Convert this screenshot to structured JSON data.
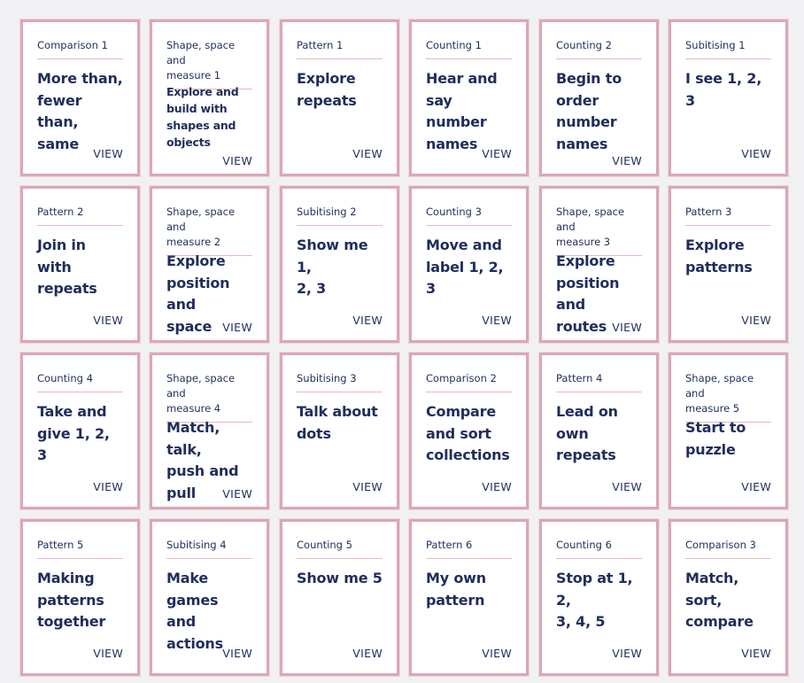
{
  "view_label": "VIEW",
  "cards": [
    {
      "category": "Comparison 1",
      "title": "More than, fewer than, same"
    },
    {
      "category": "Shape, space and measure 1",
      "title": "Explore and build with shapes and objects"
    },
    {
      "category": "Pattern 1",
      "title": "Explore repeats"
    },
    {
      "category": "Counting 1",
      "title": "Hear and say number names"
    },
    {
      "category": "Counting 2",
      "title": "Begin to order number names"
    },
    {
      "category": "Subitising 1",
      "title": "I see 1, 2, 3"
    },
    {
      "category": "Pattern 2",
      "title": "Join in with repeats"
    },
    {
      "category": "Shape, space and measure 2",
      "title": "Explore position and space"
    },
    {
      "category": "Subitising 2",
      "title": "Show me 1, 2, 3"
    },
    {
      "category": "Counting 3",
      "title": "Move and label 1, 2, 3"
    },
    {
      "category": "Shape, space and measure 3",
      "title": "Explore position and routes"
    },
    {
      "category": "Pattern 3",
      "title": "Explore patterns"
    },
    {
      "category": "Counting 4",
      "title": "Take and give 1, 2, 3"
    },
    {
      "category": "Shape, space and measure 4",
      "title": "Match, talk, push and pull"
    },
    {
      "category": "Subitising 3",
      "title": "Talk about dots"
    },
    {
      "category": "Comparison 2",
      "title": "Compare and sort collections"
    },
    {
      "category": "Pattern 4",
      "title": "Lead on own repeats"
    },
    {
      "category": "Shape, space and measure 5",
      "title": "Start to puzzle"
    },
    {
      "category": "Pattern 5",
      "title": "Making patterns together"
    },
    {
      "category": "Subitising 4",
      "title": "Make games and actions"
    },
    {
      "category": "Counting 5",
      "title": "Show me 5"
    },
    {
      "category": "Pattern 6",
      "title": "My own pattern"
    },
    {
      "category": "Counting 6",
      "title": "Stop at 1, 2, 3, 4, 5"
    },
    {
      "category": "Comparison 3",
      "title": "Match, sort, compare"
    }
  ]
}
